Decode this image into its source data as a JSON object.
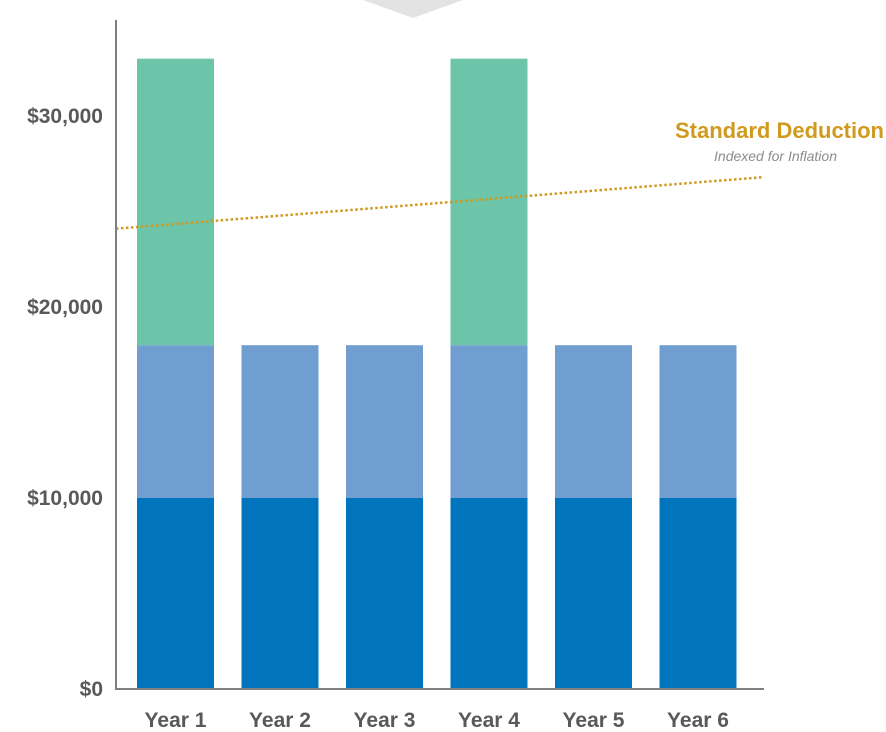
{
  "chart_data": {
    "type": "bar",
    "stacked": true,
    "categories": [
      "Year 1",
      "Year 2",
      "Year 3",
      "Year 4",
      "Year 5",
      "Year 6"
    ],
    "series": [
      {
        "values": [
          10000,
          10000,
          10000,
          10000,
          10000,
          10000
        ],
        "color": "#0075be"
      },
      {
        "values": [
          8000,
          8000,
          8000,
          8000,
          8000,
          8000
        ],
        "color": "#719ed1"
      },
      {
        "values": [
          15000,
          0,
          0,
          15000,
          0,
          0
        ],
        "color": "#6cc5a8"
      }
    ],
    "ylim": [
      0,
      35000
    ],
    "yticks": [
      {
        "value": 0,
        "label": "$0"
      },
      {
        "value": 10000,
        "label": "$10,000"
      },
      {
        "value": 20000,
        "label": "$20,000"
      },
      {
        "value": 30000,
        "label": "$30,000"
      }
    ],
    "reference_line": {
      "label": "Standard Deduction",
      "sublabel": "Indexed for Inflation",
      "style": "dotted",
      "color": "#d09a1e",
      "y_start": 24100,
      "y_end": 26800
    },
    "grid": false,
    "axis_color": "#7f7f7f"
  }
}
